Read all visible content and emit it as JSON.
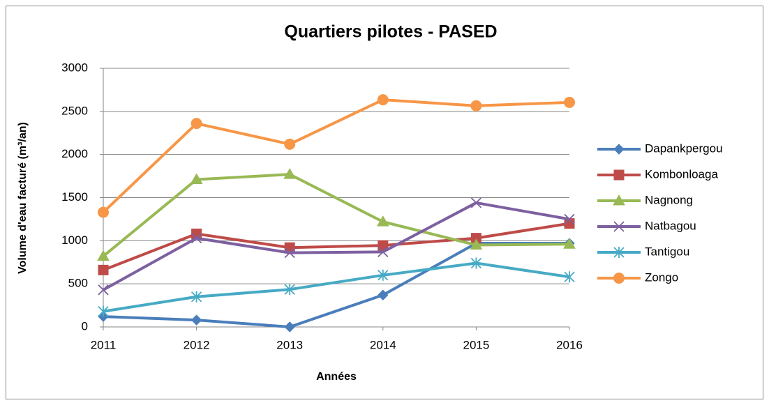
{
  "chart_data": {
    "type": "line",
    "title": "Quartiers pilotes - PASED",
    "x_label": "Années",
    "y_label": "Volume d'eau facturé (m³/an)",
    "categories": [
      "2011",
      "2012",
      "2013",
      "2014",
      "2015",
      "2016"
    ],
    "series": [
      {
        "name": "Dapankpergou",
        "color": "#4a7ebb",
        "marker": "diamond",
        "values": [
          120,
          80,
          0,
          370,
          970,
          970
        ]
      },
      {
        "name": "Kombonloaga",
        "color": "#be4b48",
        "marker": "square",
        "values": [
          660,
          1080,
          920,
          945,
          1030,
          1200
        ]
      },
      {
        "name": "Nagnong",
        "color": "#98b954",
        "marker": "triangle",
        "values": [
          820,
          1710,
          1770,
          1220,
          950,
          960
        ]
      },
      {
        "name": "Natbagou",
        "color": "#7d60a0",
        "marker": "x",
        "values": [
          430,
          1030,
          860,
          870,
          1440,
          1250
        ]
      },
      {
        "name": "Tantigou",
        "color": "#46aac5",
        "marker": "star",
        "values": [
          180,
          350,
          435,
          600,
          740,
          580
        ]
      },
      {
        "name": "Zongo",
        "color": "#f79646",
        "marker": "circle",
        "values": [
          1330,
          2360,
          2120,
          2635,
          2565,
          2605
        ]
      }
    ],
    "ylim": [
      0,
      3000
    ],
    "yticks": [
      0,
      500,
      1000,
      1500,
      2000,
      2500,
      3000
    ],
    "grid": true,
    "legend": "right"
  }
}
